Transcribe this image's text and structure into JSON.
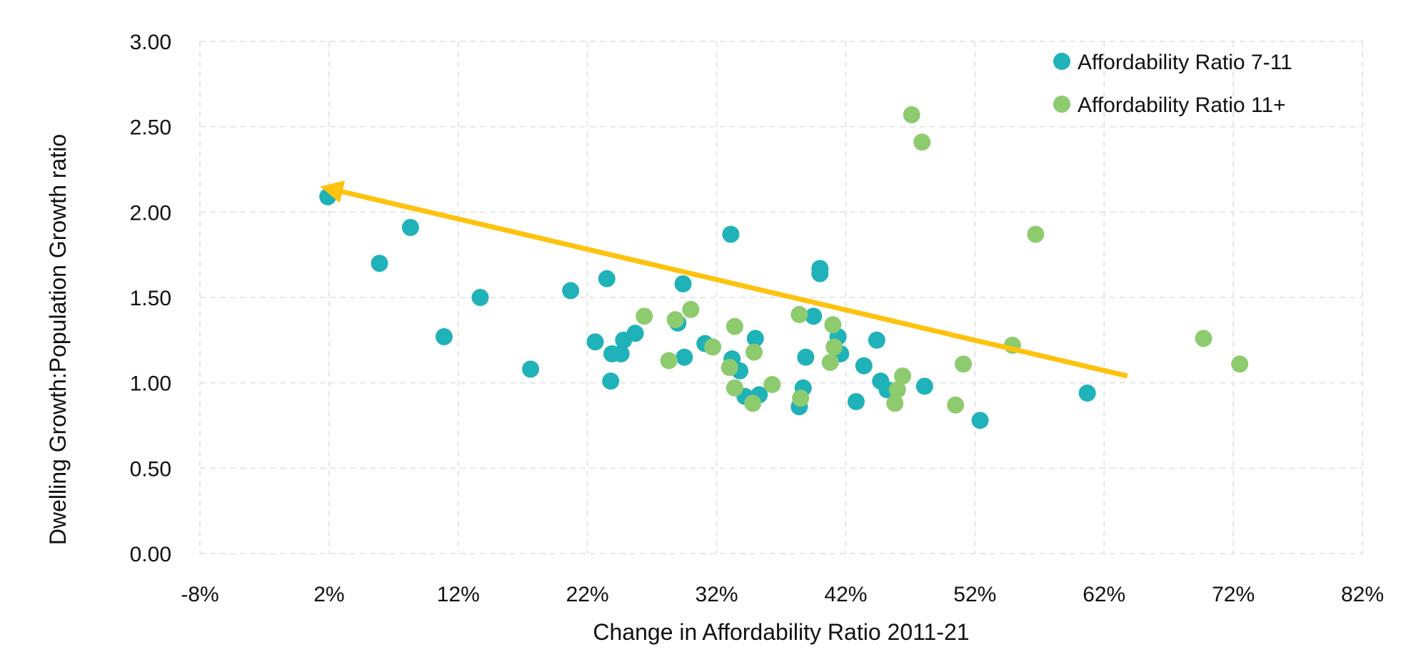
{
  "chart_data": {
    "type": "scatter",
    "xlabel": "Change in Affordability Ratio 2011-21",
    "ylabel": "Dwelling Growth:Population Growth ratio",
    "xlim": [
      -8,
      82
    ],
    "ylim": [
      0,
      3
    ],
    "x_ticks": [
      -8,
      2,
      12,
      22,
      32,
      42,
      52,
      62,
      72,
      82
    ],
    "x_tick_labels": [
      "-8%",
      "2%",
      "12%",
      "22%",
      "32%",
      "42%",
      "52%",
      "62%",
      "72%",
      "82%"
    ],
    "y_ticks": [
      0,
      0.5,
      1,
      1.5,
      2,
      2.5,
      3
    ],
    "y_tick_labels": [
      "0.00",
      "0.50",
      "1.00",
      "1.50",
      "2.00",
      "2.50",
      "3.00"
    ],
    "grid": true,
    "legend_position": "top-right",
    "series": [
      {
        "name": "Affordability Ratio 7-11",
        "color": "#1FB2B8",
        "points": [
          [
            1.9,
            2.09
          ],
          [
            5.9,
            1.7
          ],
          [
            8.3,
            1.91
          ],
          [
            10.9,
            1.27
          ],
          [
            13.7,
            1.5
          ],
          [
            17.6,
            1.08
          ],
          [
            20.7,
            1.54
          ],
          [
            22.6,
            1.24
          ],
          [
            23.5,
            1.61
          ],
          [
            23.8,
            1.01
          ],
          [
            23.9,
            1.17
          ],
          [
            24.6,
            1.17
          ],
          [
            24.8,
            1.25
          ],
          [
            25.7,
            1.29
          ],
          [
            29.0,
            1.35
          ],
          [
            29.4,
            1.58
          ],
          [
            29.5,
            1.15
          ],
          [
            31.1,
            1.23
          ],
          [
            33.1,
            1.87
          ],
          [
            33.2,
            1.14
          ],
          [
            33.8,
            1.07
          ],
          [
            34.2,
            0.92
          ],
          [
            35.0,
            1.26
          ],
          [
            35.3,
            0.93
          ],
          [
            38.4,
            0.86
          ],
          [
            38.7,
            0.97
          ],
          [
            38.9,
            1.15
          ],
          [
            39.5,
            1.39
          ],
          [
            40.0,
            1.67
          ],
          [
            40.0,
            1.64
          ],
          [
            41.4,
            1.27
          ],
          [
            41.6,
            1.17
          ],
          [
            42.8,
            0.89
          ],
          [
            43.4,
            1.1
          ],
          [
            44.4,
            1.25
          ],
          [
            44.7,
            1.01
          ],
          [
            45.2,
            0.96
          ],
          [
            48.1,
            0.98
          ],
          [
            52.4,
            0.78
          ],
          [
            60.7,
            0.94
          ]
        ]
      },
      {
        "name": "Affordability Ratio 11+",
        "color": "#8DCB6E",
        "points": [
          [
            26.4,
            1.39
          ],
          [
            28.3,
            1.13
          ],
          [
            28.8,
            1.37
          ],
          [
            30.0,
            1.43
          ],
          [
            31.7,
            1.21
          ],
          [
            33.0,
            1.09
          ],
          [
            33.4,
            1.33
          ],
          [
            33.4,
            0.97
          ],
          [
            34.8,
            0.88
          ],
          [
            34.9,
            1.18
          ],
          [
            36.3,
            0.99
          ],
          [
            38.4,
            1.4
          ],
          [
            38.5,
            0.91
          ],
          [
            40.8,
            1.12
          ],
          [
            41.0,
            1.34
          ],
          [
            41.1,
            1.21
          ],
          [
            45.8,
            0.88
          ],
          [
            46.0,
            0.96
          ],
          [
            46.4,
            1.04
          ],
          [
            47.1,
            2.57
          ],
          [
            47.9,
            2.41
          ],
          [
            50.5,
            0.87
          ],
          [
            51.1,
            1.11
          ],
          [
            54.9,
            1.22
          ],
          [
            56.7,
            1.87
          ],
          [
            69.7,
            1.26
          ],
          [
            72.5,
            1.11
          ]
        ]
      }
    ],
    "annotations": [
      {
        "type": "arrow",
        "color": "#FFC20E",
        "from": [
          63.8,
          1.04
        ],
        "to": [
          1.3,
          2.15
        ]
      }
    ]
  }
}
